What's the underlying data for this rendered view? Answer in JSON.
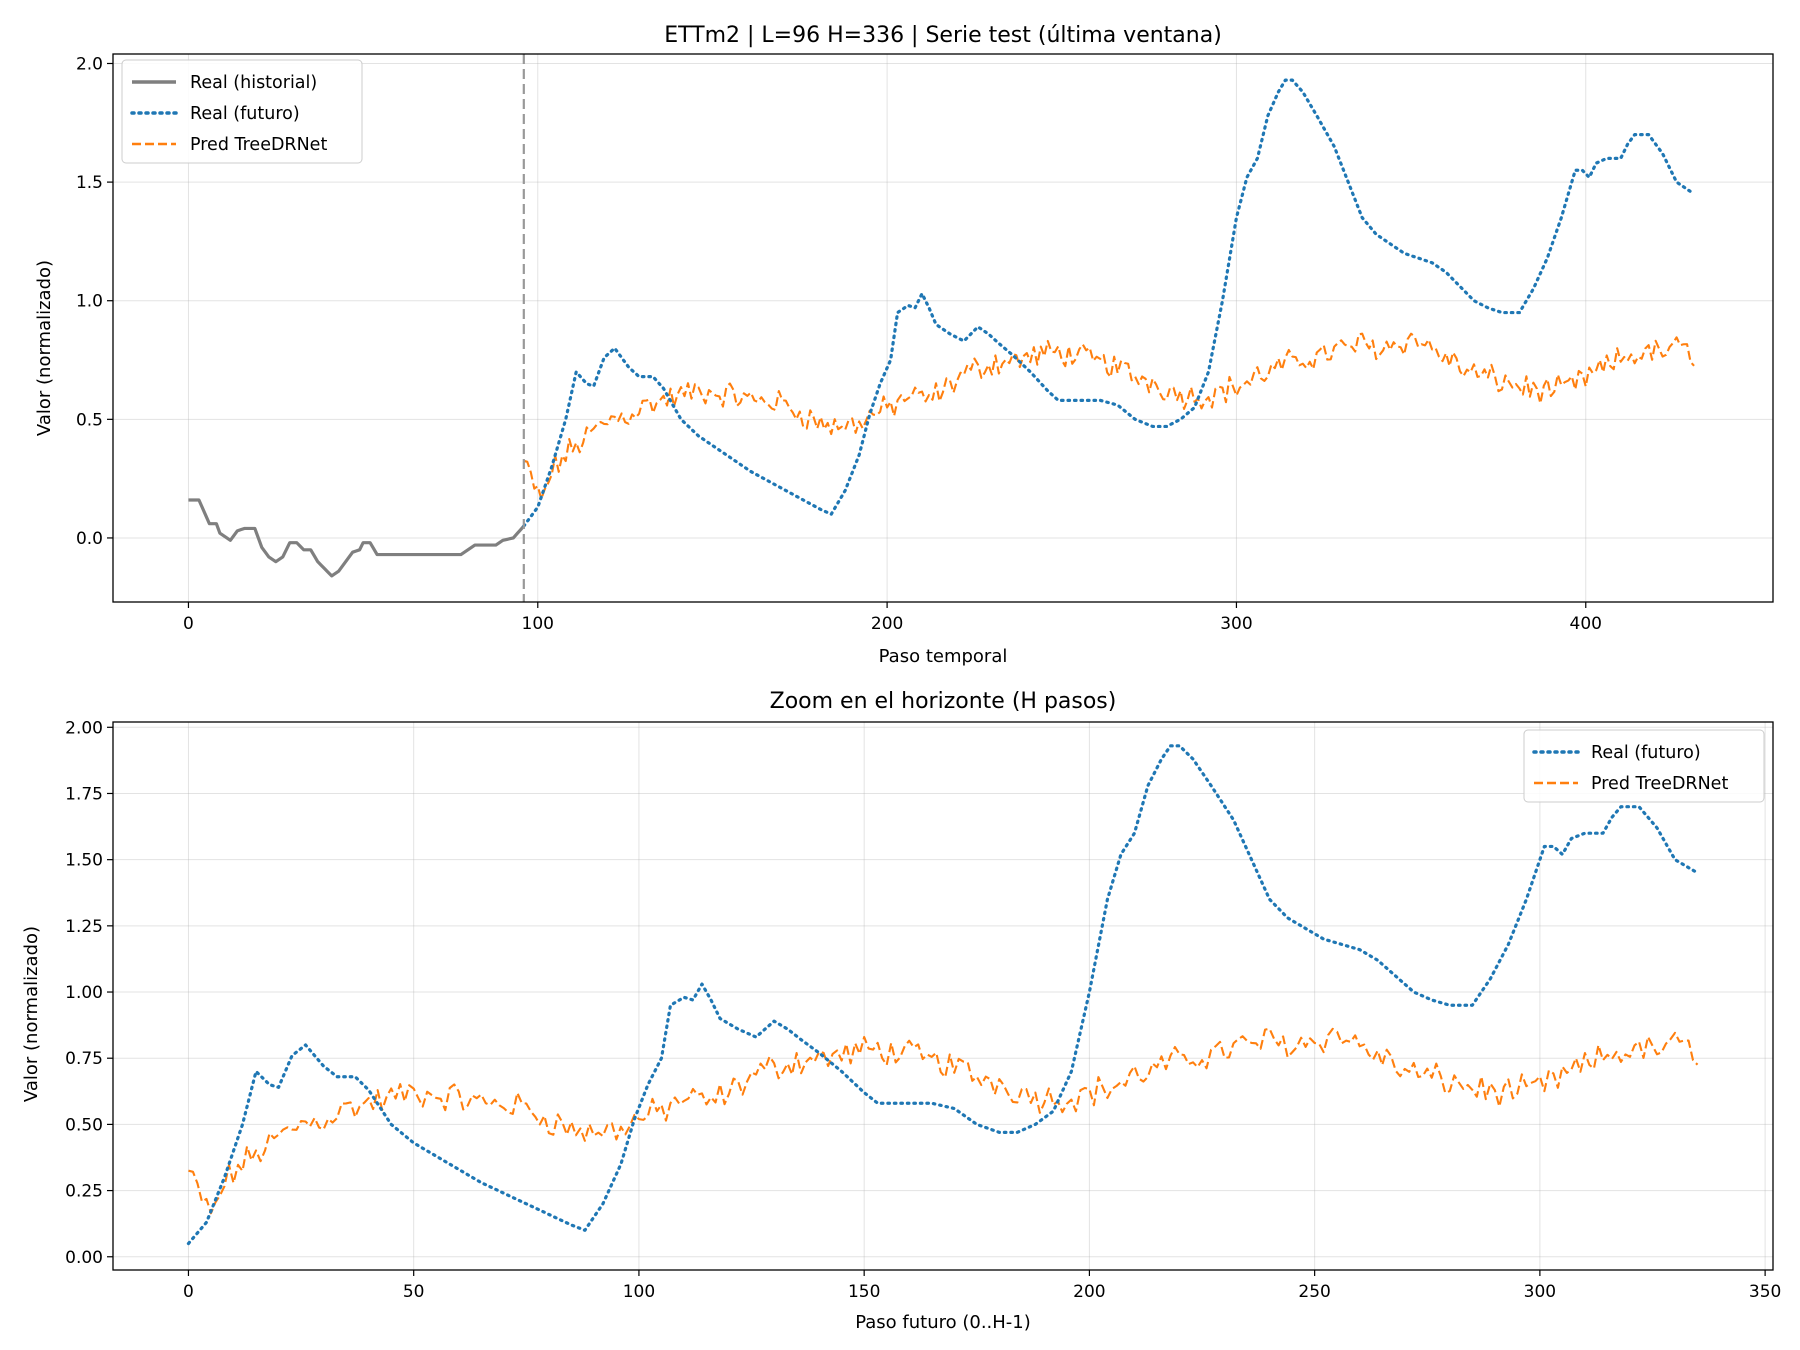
{
  "chart_data": [
    {
      "type": "line",
      "title": "ETTm2 | L=96 H=336 | Serie test (última ventana)",
      "xlabel": "Paso temporal",
      "ylabel": "Valor (normalizado)",
      "xlim": [
        -21.6,
        453.6
      ],
      "ylim": [
        -0.27,
        2.04
      ],
      "xticks": [
        0,
        100,
        200,
        300,
        400
      ],
      "xtick_labels": [
        "0",
        "100",
        "200",
        "300",
        "400"
      ],
      "yticks": [
        0.0,
        0.5,
        1.0,
        1.5,
        2.0
      ],
      "ytick_labels": [
        "0.0",
        "0.5",
        "1.0",
        "1.5",
        "2.0"
      ],
      "grid": true,
      "legend_position": "top-left",
      "vline": {
        "x": 96,
        "style": "dashed",
        "color": "#999999"
      },
      "series": [
        {
          "name": "Real (historial)",
          "style": "solid",
          "color": "#7f7f7f",
          "x_start": 0,
          "anchors": [
            [
              0,
              0.16
            ],
            [
              3,
              0.16
            ],
            [
              6,
              0.06
            ],
            [
              8,
              0.06
            ],
            [
              9,
              0.02
            ],
            [
              11,
              0.0
            ],
            [
              12,
              -0.01
            ],
            [
              14,
              0.03
            ],
            [
              16,
              0.04
            ],
            [
              19,
              0.04
            ],
            [
              21,
              -0.04
            ],
            [
              23,
              -0.08
            ],
            [
              25,
              -0.1
            ],
            [
              27,
              -0.08
            ],
            [
              29,
              -0.02
            ],
            [
              31,
              -0.02
            ],
            [
              33,
              -0.05
            ],
            [
              35,
              -0.05
            ],
            [
              37,
              -0.1
            ],
            [
              39,
              -0.13
            ],
            [
              41,
              -0.16
            ],
            [
              43,
              -0.14
            ],
            [
              45,
              -0.1
            ],
            [
              47,
              -0.06
            ],
            [
              49,
              -0.05
            ],
            [
              50,
              -0.02
            ],
            [
              52,
              -0.02
            ],
            [
              54,
              -0.07
            ],
            [
              60,
              -0.07
            ],
            [
              70,
              -0.07
            ],
            [
              78,
              -0.07
            ],
            [
              80,
              -0.05
            ],
            [
              82,
              -0.03
            ],
            [
              88,
              -0.03
            ],
            [
              90,
              -0.01
            ],
            [
              93,
              0.0
            ],
            [
              96,
              0.05
            ]
          ]
        },
        {
          "name": "Real (futuro)",
          "style": "dotted",
          "color": "#1f77b4",
          "x_start": 96,
          "anchors": [
            [
              0,
              0.05
            ],
            [
              4,
              0.13
            ],
            [
              8,
              0.3
            ],
            [
              12,
              0.5
            ],
            [
              15,
              0.7
            ],
            [
              18,
              0.65
            ],
            [
              20,
              0.64
            ],
            [
              23,
              0.76
            ],
            [
              26,
              0.8
            ],
            [
              30,
              0.72
            ],
            [
              33,
              0.68
            ],
            [
              37,
              0.68
            ],
            [
              40,
              0.63
            ],
            [
              45,
              0.5
            ],
            [
              50,
              0.43
            ],
            [
              55,
              0.38
            ],
            [
              60,
              0.33
            ],
            [
              65,
              0.28
            ],
            [
              70,
              0.24
            ],
            [
              75,
              0.2
            ],
            [
              80,
              0.16
            ],
            [
              85,
              0.12
            ],
            [
              88,
              0.1
            ],
            [
              92,
              0.2
            ],
            [
              96,
              0.35
            ],
            [
              99,
              0.52
            ],
            [
              102,
              0.65
            ],
            [
              105,
              0.75
            ],
            [
              107,
              0.95
            ],
            [
              110,
              0.98
            ],
            [
              112,
              0.97
            ],
            [
              114,
              1.03
            ],
            [
              116,
              0.97
            ],
            [
              118,
              0.9
            ],
            [
              122,
              0.86
            ],
            [
              126,
              0.83
            ],
            [
              130,
              0.89
            ],
            [
              133,
              0.86
            ],
            [
              136,
              0.82
            ],
            [
              140,
              0.77
            ],
            [
              145,
              0.7
            ],
            [
              150,
              0.62
            ],
            [
              153,
              0.58
            ],
            [
              160,
              0.58
            ],
            [
              165,
              0.58
            ],
            [
              170,
              0.56
            ],
            [
              175,
              0.5
            ],
            [
              180,
              0.47
            ],
            [
              184,
              0.47
            ],
            [
              188,
              0.5
            ],
            [
              192,
              0.55
            ],
            [
              196,
              0.7
            ],
            [
              200,
              1.0
            ],
            [
              204,
              1.35
            ],
            [
              207,
              1.52
            ],
            [
              210,
              1.6
            ],
            [
              213,
              1.78
            ],
            [
              216,
              1.88
            ],
            [
              218,
              1.93
            ],
            [
              220,
              1.93
            ],
            [
              223,
              1.88
            ],
            [
              227,
              1.78
            ],
            [
              232,
              1.65
            ],
            [
              236,
              1.5
            ],
            [
              240,
              1.35
            ],
            [
              244,
              1.28
            ],
            [
              248,
              1.24
            ],
            [
              252,
              1.2
            ],
            [
              256,
              1.18
            ],
            [
              260,
              1.16
            ],
            [
              264,
              1.12
            ],
            [
              268,
              1.06
            ],
            [
              272,
              1.0
            ],
            [
              276,
              0.97
            ],
            [
              280,
              0.95
            ],
            [
              285,
              0.95
            ],
            [
              289,
              1.05
            ],
            [
              293,
              1.18
            ],
            [
              297,
              1.35
            ],
            [
              301,
              1.55
            ],
            [
              303,
              1.55
            ],
            [
              305,
              1.52
            ],
            [
              307,
              1.58
            ],
            [
              310,
              1.6
            ],
            [
              314,
              1.6
            ],
            [
              316,
              1.66
            ],
            [
              318,
              1.7
            ],
            [
              322,
              1.7
            ],
            [
              326,
              1.62
            ],
            [
              330,
              1.5
            ],
            [
              335,
              1.45
            ]
          ]
        },
        {
          "name": "Pred TreeDRNet",
          "style": "dashed",
          "color": "#ff7f0e",
          "x_start": 96,
          "noise": 0.045,
          "anchors": [
            [
              0,
              0.32
            ],
            [
              3,
              0.22
            ],
            [
              5,
              0.15
            ],
            [
              8,
              0.28
            ],
            [
              12,
              0.35
            ],
            [
              16,
              0.4
            ],
            [
              20,
              0.45
            ],
            [
              25,
              0.5
            ],
            [
              30,
              0.52
            ],
            [
              35,
              0.56
            ],
            [
              40,
              0.58
            ],
            [
              45,
              0.6
            ],
            [
              50,
              0.62
            ],
            [
              55,
              0.61
            ],
            [
              60,
              0.6
            ],
            [
              65,
              0.58
            ],
            [
              70,
              0.58
            ],
            [
              75,
              0.56
            ],
            [
              80,
              0.52
            ],
            [
              85,
              0.48
            ],
            [
              90,
              0.47
            ],
            [
              95,
              0.48
            ],
            [
              100,
              0.52
            ],
            [
              105,
              0.55
            ],
            [
              110,
              0.6
            ],
            [
              115,
              0.58
            ],
            [
              120,
              0.62
            ],
            [
              125,
              0.68
            ],
            [
              130,
              0.72
            ],
            [
              135,
              0.74
            ],
            [
              140,
              0.75
            ],
            [
              145,
              0.76
            ],
            [
              150,
              0.78
            ],
            [
              155,
              0.78
            ],
            [
              160,
              0.76
            ],
            [
              165,
              0.74
            ],
            [
              170,
              0.72
            ],
            [
              175,
              0.68
            ],
            [
              180,
              0.66
            ],
            [
              185,
              0.62
            ],
            [
              190,
              0.6
            ],
            [
              195,
              0.6
            ],
            [
              200,
              0.62
            ],
            [
              205,
              0.64
            ],
            [
              210,
              0.68
            ],
            [
              215,
              0.71
            ],
            [
              220,
              0.74
            ],
            [
              225,
              0.76
            ],
            [
              230,
              0.78
            ],
            [
              235,
              0.8
            ],
            [
              240,
              0.82
            ],
            [
              245,
              0.8
            ],
            [
              250,
              0.82
            ],
            [
              255,
              0.84
            ],
            [
              260,
              0.8
            ],
            [
              265,
              0.75
            ],
            [
              270,
              0.7
            ],
            [
              275,
              0.68
            ],
            [
              280,
              0.66
            ],
            [
              285,
              0.64
            ],
            [
              290,
              0.62
            ],
            [
              295,
              0.62
            ],
            [
              300,
              0.64
            ],
            [
              305,
              0.68
            ],
            [
              310,
              0.72
            ],
            [
              315,
              0.76
            ],
            [
              320,
              0.78
            ],
            [
              325,
              0.78
            ],
            [
              330,
              0.8
            ],
            [
              335,
              0.78
            ]
          ]
        }
      ]
    },
    {
      "type": "line",
      "title": "Zoom en el horizonte (H pasos)",
      "xlabel": "Paso futuro (0..H-1)",
      "ylabel": "Valor (normalizado)",
      "xlim": [
        -16.75,
        351.75
      ],
      "ylim": [
        -0.05,
        2.02
      ],
      "xticks": [
        0,
        50,
        100,
        150,
        200,
        250,
        300,
        350
      ],
      "xtick_labels": [
        "0",
        "50",
        "100",
        "150",
        "200",
        "250",
        "300",
        "350"
      ],
      "yticks": [
        0.0,
        0.25,
        0.5,
        0.75,
        1.0,
        1.25,
        1.5,
        1.75,
        2.0
      ],
      "ytick_labels": [
        "0.00",
        "0.25",
        "0.50",
        "0.75",
        "1.00",
        "1.25",
        "1.50",
        "1.75",
        "2.00"
      ],
      "grid": true,
      "legend_position": "top-right",
      "series_ref": [
        "Real (futuro)",
        "Pred TreeDRNet"
      ]
    }
  ]
}
